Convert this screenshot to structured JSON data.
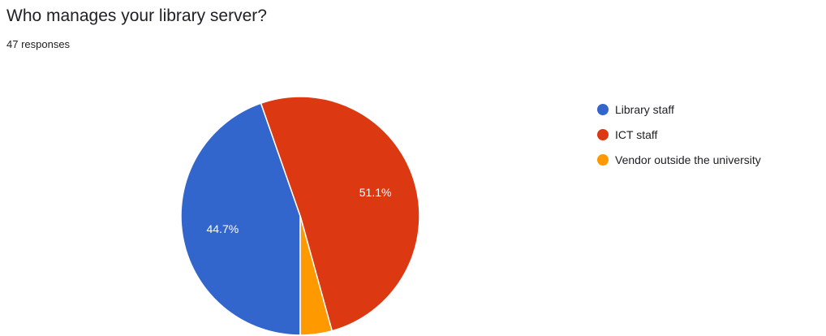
{
  "chart_data": {
    "type": "pie",
    "title": "Who manages your library server?",
    "subtitle": "47 responses",
    "slices": [
      {
        "label": "Library staff",
        "value": 44.7,
        "display_label": "44.7%",
        "color": "#3366cc"
      },
      {
        "label": "ICT staff",
        "value": 51.1,
        "display_label": "51.1%",
        "color": "#dc3912"
      },
      {
        "label": "Vendor outside the university",
        "value": 4.3,
        "display_label": "",
        "color": "#ff9900"
      }
    ],
    "legend_position": "right"
  }
}
